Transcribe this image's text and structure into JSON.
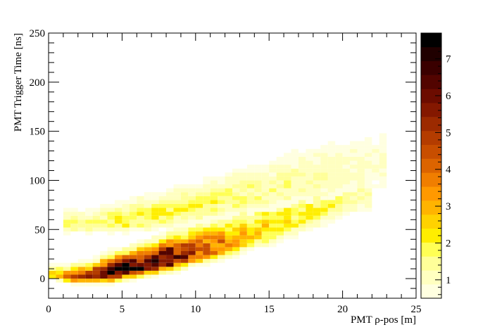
{
  "chart_data": {
    "type": "heatmap",
    "title": "",
    "xlabel": "PMT ρ-pos [m]",
    "ylabel": "PMT Trigger Time [ns]",
    "xlim": [
      0,
      25
    ],
    "ylim": [
      -20,
      250
    ],
    "x_ticks": [
      0,
      5,
      10,
      15,
      20,
      25
    ],
    "y_ticks": [
      0,
      50,
      100,
      150,
      200,
      250
    ],
    "colorbar": {
      "range": [
        0.5,
        7.7
      ],
      "ticks": [
        1,
        2,
        3,
        4,
        5,
        6,
        7
      ],
      "colors": [
        "#ffffe0",
        "#ffffc0",
        "#ffff99",
        "#ffff55",
        "#ffee00",
        "#ffd200",
        "#ffb400",
        "#ff9900",
        "#f07e00",
        "#dc6400",
        "#c84e00",
        "#b43c00",
        "#9c2a00",
        "#841800",
        "#6c0c00",
        "#520400",
        "#3a0000",
        "#200000",
        "#000000"
      ]
    },
    "bin_width_x": 0.5,
    "bin_width_y": 4,
    "bands": [
      {
        "name": "",
        "points": [
          [
            0.5,
            3
          ],
          [
            1.5,
            1
          ],
          [
            3,
            2
          ],
          [
            4,
            4
          ],
          [
            5,
            8
          ],
          [
            6,
            11
          ],
          [
            7,
            14
          ],
          [
            8,
            18
          ],
          [
            9,
            22
          ],
          [
            10,
            26
          ],
          [
            11,
            30
          ],
          [
            12,
            34
          ],
          [
            13,
            39
          ],
          [
            14,
            44
          ],
          [
            15,
            49
          ],
          [
            16,
            55
          ],
          [
            17,
            61
          ],
          [
            18,
            67
          ],
          [
            19,
            73
          ],
          [
            20,
            79
          ],
          [
            21,
            83
          ]
        ],
        "weights": [
          2.2,
          3.8,
          4.9,
          7.6,
          7.4,
          6.8,
          6.2,
          7.2,
          5.4,
          4.4,
          4.2,
          3.5,
          2.8,
          2.6,
          2.4,
          2.2,
          2.0,
          1.9,
          1.7,
          1.5,
          1.2
        ]
      },
      {
        "name": "",
        "points": [
          [
            1.5,
            55
          ],
          [
            3,
            55
          ],
          [
            4,
            57
          ],
          [
            5,
            58
          ],
          [
            6,
            60
          ],
          [
            7,
            62
          ],
          [
            8,
            65
          ],
          [
            9,
            68
          ],
          [
            10,
            71
          ],
          [
            11,
            74
          ],
          [
            12,
            78
          ],
          [
            13,
            81
          ],
          [
            14,
            84
          ],
          [
            15,
            88
          ],
          [
            16,
            91
          ],
          [
            17,
            95
          ],
          [
            18,
            98
          ],
          [
            19,
            102
          ],
          [
            20,
            106
          ],
          [
            21,
            109
          ],
          [
            22,
            112
          ]
        ],
        "weights": [
          1.8,
          1.6,
          1.8,
          2.0,
          2.0,
          2.0,
          2.0,
          1.8,
          1.8,
          1.8,
          1.6,
          1.6,
          1.5,
          1.4,
          1.4,
          1.3,
          1.2,
          1.2,
          1.1,
          1.0,
          0.9
        ]
      }
    ]
  }
}
